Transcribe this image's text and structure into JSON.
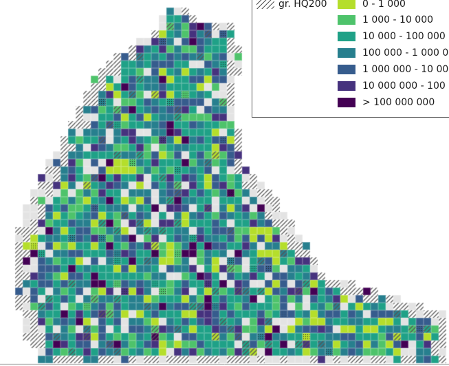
{
  "legend": {
    "hatch_label": "gr. HQ200",
    "classes": [
      {
        "label": "0 - 1 000",
        "color": "#b5de2b"
      },
      {
        "label": "1 000 - 10 000",
        "color": "#4ec36b"
      },
      {
        "label": "10 000 - 100 000",
        "color": "#1fa187"
      },
      {
        "label": "100 000 - 1 000 0",
        "color": "#277f8e"
      },
      {
        "label": "1 000 000 - 10 00",
        "color": "#365c8d"
      },
      {
        "label": "10 000 000 - 100",
        "color": "#46327e"
      },
      {
        "label": "> 100 000 000",
        "color": "#440154"
      }
    ],
    "nodata_color": "#e3e3e3",
    "hatch_color": "#555555"
  }
}
